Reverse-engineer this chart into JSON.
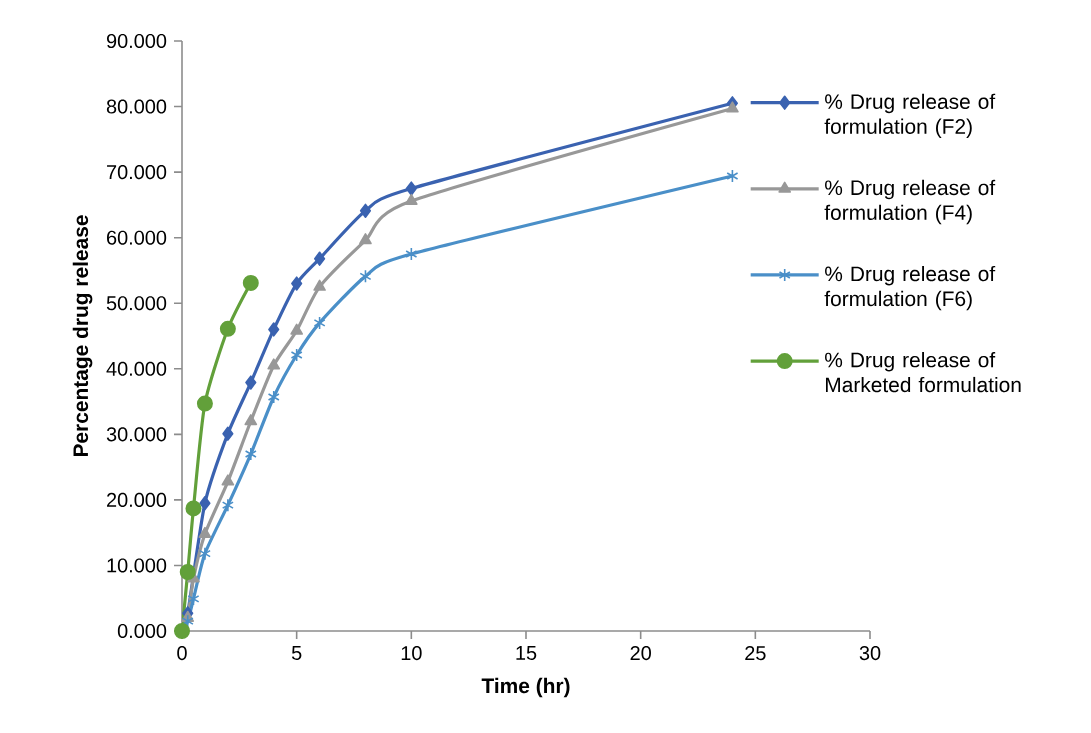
{
  "chart_data": {
    "type": "line",
    "xlabel": "Time (hr)",
    "ylabel": "Percentage drug release",
    "xlim": [
      0,
      30
    ],
    "xticks": [
      0,
      5,
      10,
      15,
      20,
      25,
      30
    ],
    "ylim": [
      0,
      90
    ],
    "yticks": [
      {
        "value": 0,
        "label": "0.000"
      },
      {
        "value": 10,
        "label": "10.000"
      },
      {
        "value": 20,
        "label": "20.000"
      },
      {
        "value": 30,
        "label": "30.000"
      },
      {
        "value": 40,
        "label": "40.000"
      },
      {
        "value": 50,
        "label": "50.000"
      },
      {
        "value": 60,
        "label": "60.000"
      },
      {
        "value": 70,
        "label": "70.000"
      },
      {
        "value": 80,
        "label": "80.000"
      },
      {
        "value": 90,
        "label": "90.000"
      }
    ],
    "grid": false,
    "legend": "right",
    "line_style": "solid",
    "series": [
      {
        "name": "% Drug release of formulation (F2)",
        "color": "#3a62b0",
        "marker": "diamond",
        "x": [
          0,
          0.25,
          0.5,
          1,
          2,
          3,
          4,
          5,
          6,
          8,
          10,
          24
        ],
        "values": [
          0,
          2.7,
          null,
          19.5,
          30.1,
          37.9,
          46.0,
          53.0,
          56.8,
          64.1,
          67.5,
          80.5
        ]
      },
      {
        "name": "% Drug release of formulation (F4)",
        "color": "#989898",
        "marker": "triangle",
        "x": [
          0,
          0.25,
          0.5,
          1,
          2,
          3,
          4,
          5,
          6,
          8,
          10,
          24
        ],
        "values": [
          0,
          2.0,
          8.0,
          14.8,
          22.8,
          32.0,
          40.5,
          45.8,
          52.5,
          59.6,
          65.6,
          79.7
        ]
      },
      {
        "name": "% Drug release of formulation (F6)",
        "color": "#4a8fc8",
        "marker": "cross",
        "x": [
          0,
          0.25,
          0.5,
          1,
          2,
          3,
          4,
          5,
          6,
          8,
          10,
          24
        ],
        "values": [
          0,
          1.5,
          4.9,
          11.8,
          19.2,
          27.0,
          35.7,
          42.1,
          47.0,
          54.1,
          57.5,
          69.4
        ]
      },
      {
        "name": "% Drug release of Marketed formulation",
        "color": "#62a03a",
        "marker": "circle",
        "x": [
          0,
          0.25,
          0.5,
          1,
          2,
          3
        ],
        "values": [
          0,
          9.0,
          18.7,
          34.7,
          46.1,
          53.1
        ]
      }
    ]
  }
}
